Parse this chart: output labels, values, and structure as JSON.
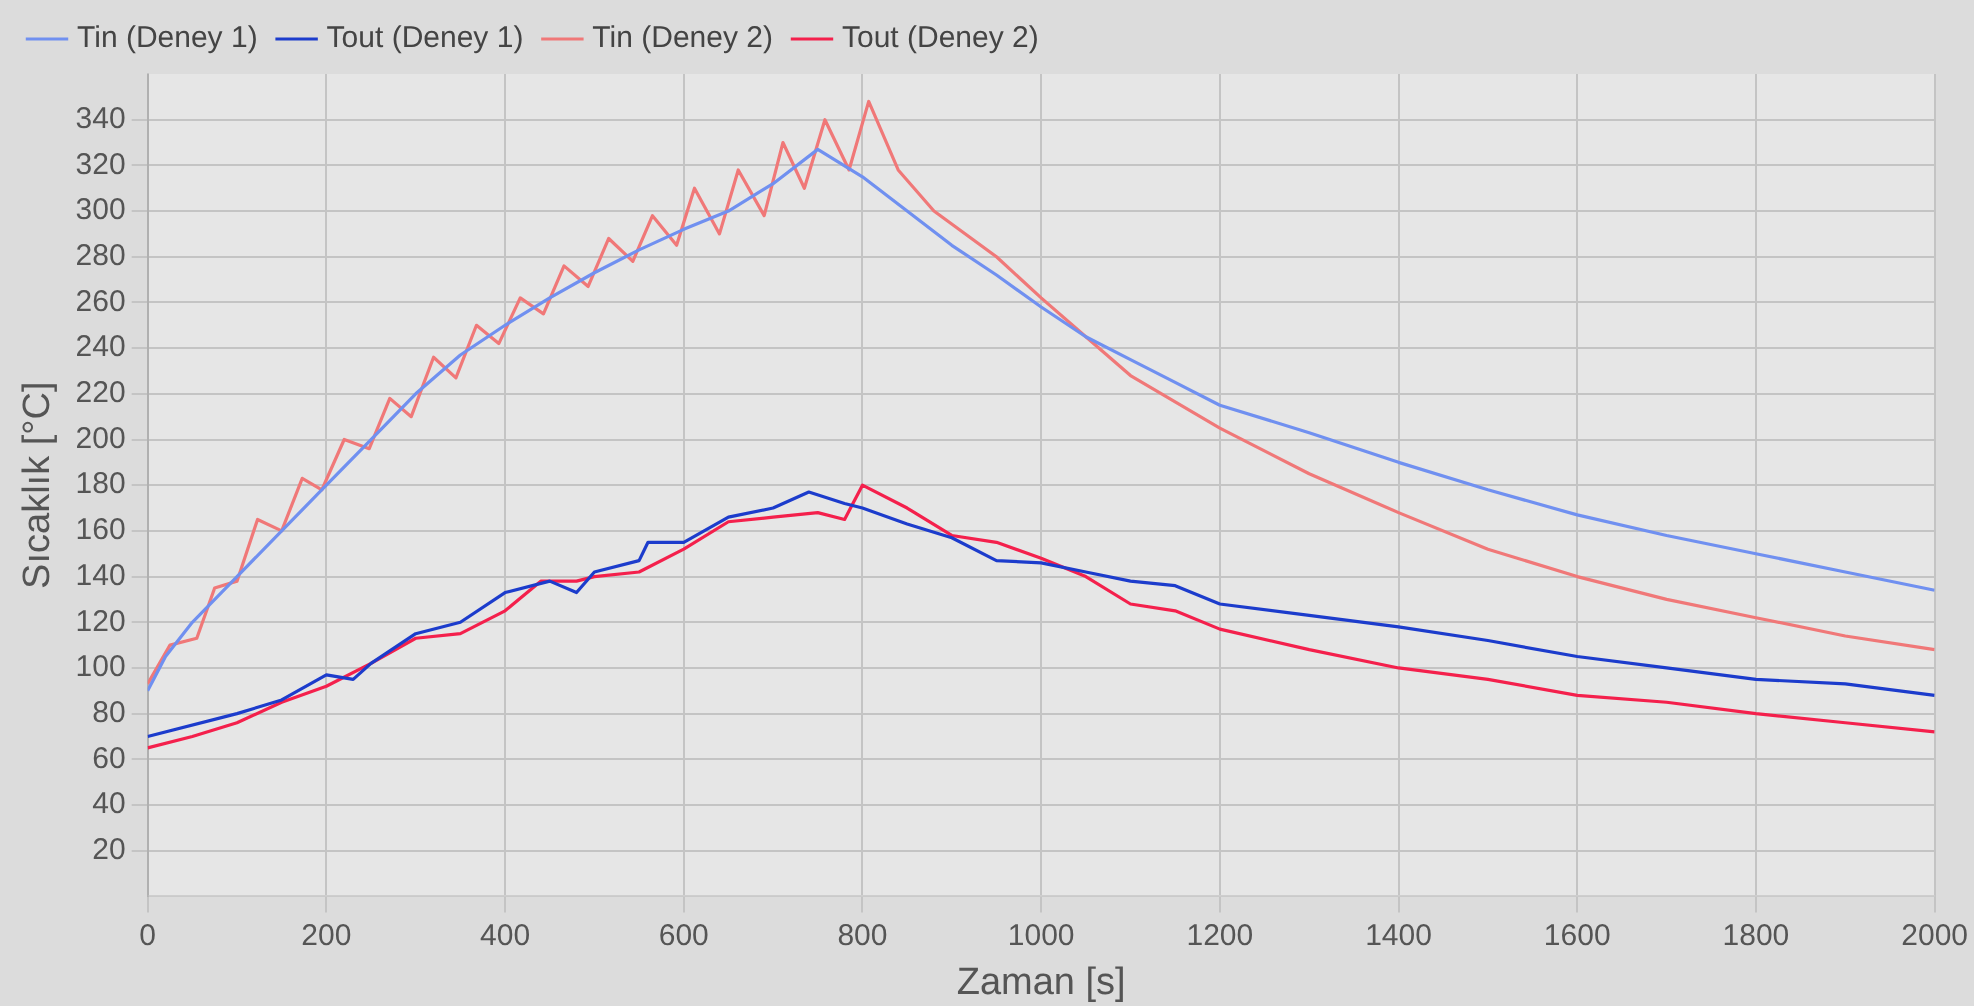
{
  "chart_data": {
    "type": "line",
    "xlabel": "Zaman [s]",
    "ylabel": "Sıcaklık [°C]",
    "xlim": [
      0,
      2000
    ],
    "xticks": [
      0,
      200,
      400,
      600,
      800,
      1000,
      1200,
      1400,
      1600,
      1800,
      2000
    ],
    "ylim": [
      0,
      360
    ],
    "yticks": [
      20,
      40,
      60,
      80,
      100,
      120,
      140,
      160,
      180,
      200,
      220,
      240,
      260,
      280,
      300,
      320,
      340
    ],
    "grid": true,
    "legend": "top",
    "marker": "none",
    "line_style": "solid",
    "series": [
      {
        "name": "Tin (Deney 1)",
        "color": "#7090f0",
        "x": [
          0,
          20,
          50,
          100,
          150,
          200,
          250,
          300,
          350,
          400,
          450,
          500,
          550,
          600,
          650,
          700,
          750,
          800,
          850,
          900,
          950,
          1000,
          1050,
          1100,
          1150,
          1200,
          1300,
          1400,
          1500,
          1600,
          1700,
          1800,
          1900,
          2000
        ],
        "values": [
          90,
          105,
          120,
          140,
          160,
          180,
          200,
          220,
          237,
          250,
          262,
          273,
          283,
          292,
          300,
          312,
          327,
          315,
          300,
          285,
          272,
          258,
          245,
          235,
          225,
          215,
          203,
          190,
          178,
          167,
          158,
          150,
          142,
          134
        ]
      },
      {
        "name": "Tout (Deney 1)",
        "color": "#1c3ccc",
        "x": [
          0,
          100,
          150,
          200,
          230,
          250,
          300,
          350,
          400,
          450,
          480,
          500,
          550,
          560,
          600,
          650,
          700,
          740,
          780,
          800,
          850,
          900,
          950,
          1000,
          1050,
          1100,
          1150,
          1200,
          1300,
          1400,
          1500,
          1600,
          1700,
          1800,
          1900,
          2000
        ],
        "values": [
          70,
          80,
          86,
          97,
          95,
          102,
          115,
          120,
          133,
          138,
          133,
          142,
          147,
          155,
          155,
          166,
          170,
          177,
          172,
          170,
          163,
          157,
          147,
          146,
          142,
          138,
          136,
          128,
          123,
          118,
          112,
          105,
          100,
          95,
          93,
          88
        ]
      },
      {
        "name": "Tin (Deney 2)",
        "color": "#f07878",
        "x": [
          0,
          25,
          55,
          75,
          100,
          123,
          150,
          173,
          195,
          220,
          248,
          271,
          295,
          320,
          345,
          368,
          393,
          417,
          443,
          466,
          493,
          516,
          543,
          565,
          592,
          612,
          640,
          661,
          690,
          711,
          735,
          758,
          785,
          807,
          840,
          880,
          950,
          1000,
          1050,
          1100,
          1200,
          1300,
          1400,
          1500,
          1600,
          1700,
          1800,
          1900,
          2000
        ],
        "values": [
          93,
          110,
          113,
          135,
          138,
          165,
          160,
          183,
          178,
          200,
          196,
          218,
          210,
          236,
          227,
          250,
          242,
          262,
          255,
          276,
          267,
          288,
          278,
          298,
          285,
          310,
          290,
          318,
          298,
          330,
          310,
          340,
          318,
          348,
          318,
          300,
          280,
          262,
          245,
          228,
          205,
          185,
          168,
          152,
          140,
          130,
          122,
          114,
          108
        ]
      },
      {
        "name": "Tout (Deney 2)",
        "color": "#f4204c",
        "x": [
          0,
          50,
          100,
          150,
          200,
          250,
          300,
          350,
          400,
          440,
          480,
          500,
          550,
          600,
          650,
          700,
          750,
          780,
          800,
          850,
          900,
          950,
          1000,
          1050,
          1100,
          1150,
          1200,
          1300,
          1400,
          1500,
          1600,
          1700,
          1800,
          1900,
          2000
        ],
        "values": [
          65,
          70,
          76,
          85,
          92,
          102,
          113,
          115,
          125,
          138,
          138,
          140,
          142,
          152,
          164,
          166,
          168,
          165,
          180,
          170,
          158,
          155,
          148,
          140,
          128,
          125,
          117,
          108,
          100,
          95,
          88,
          85,
          80,
          76,
          72
        ]
      }
    ]
  }
}
